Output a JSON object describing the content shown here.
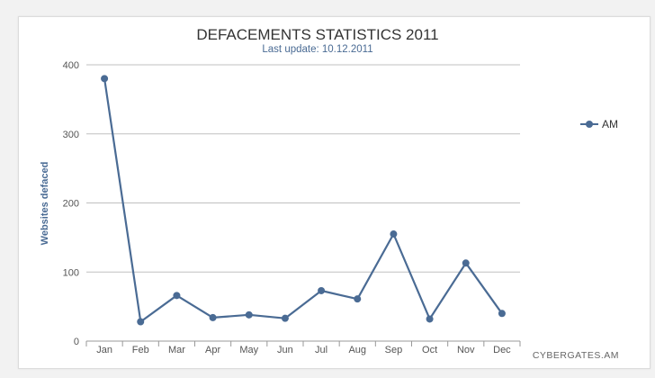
{
  "chart_data": {
    "type": "line",
    "title": "DEFACEMENTS STATISTICS 2011",
    "subtitle": "Last update: 10.12.2011",
    "ylabel": "Websites defaced",
    "xlabel": "",
    "categories": [
      "Jan",
      "Feb",
      "Mar",
      "Apr",
      "May",
      "Jun",
      "Jul",
      "Aug",
      "Sep",
      "Oct",
      "Nov",
      "Dec"
    ],
    "series": [
      {
        "name": "AM",
        "values": [
          380,
          28,
          66,
          34,
          38,
          33,
          73,
          61,
          155,
          32,
          113,
          40
        ]
      }
    ],
    "ylim": [
      0,
      400
    ],
    "yticks": [
      0,
      100,
      200,
      300,
      400
    ],
    "grid": true,
    "legend_position": "right",
    "credit": "CYBERGATES.AM",
    "colors": {
      "line": "#4a6b94",
      "marker": "#4a6b94",
      "title": "#333333",
      "subtitle": "#4a6b94",
      "axis_label": "#4a6b94",
      "tick_label": "#555555",
      "grid": "#c0c0c0",
      "credit": "#666666"
    }
  }
}
